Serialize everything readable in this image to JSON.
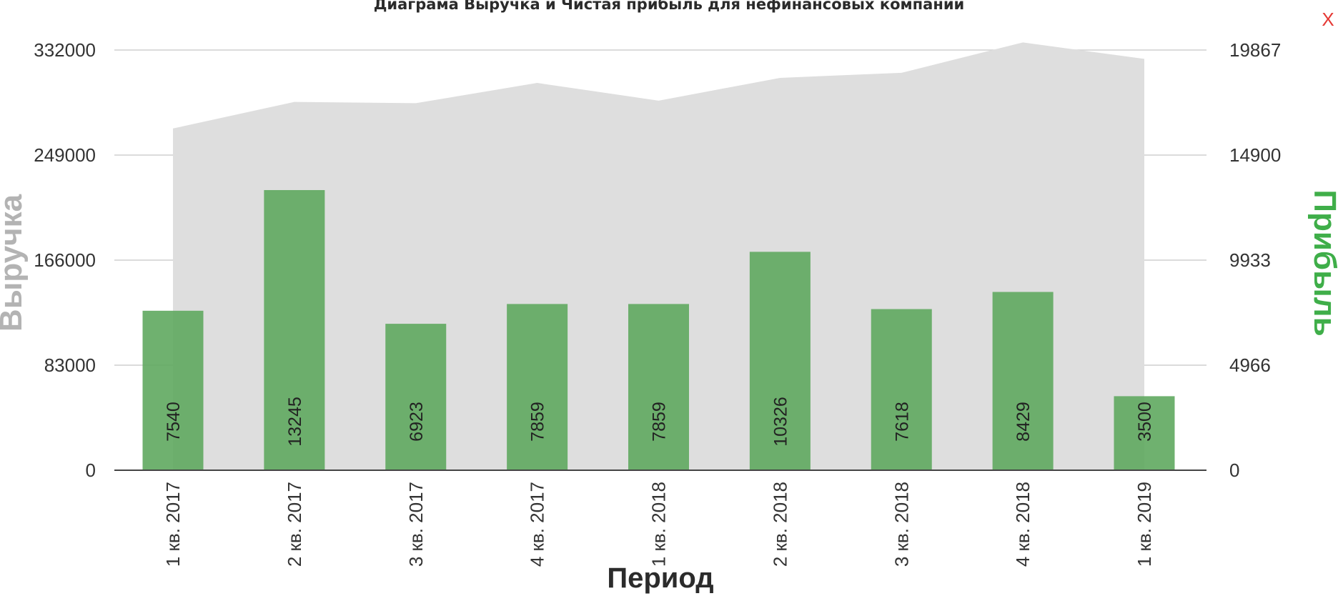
{
  "chart_data": {
    "type": "bar",
    "title": "Диаграма Выручка и Чистая прибыль для нефинансовых компаний",
    "xlabel": "Период",
    "ylabel_left": "Выручка",
    "ylabel_right": "Прибыль",
    "categories": [
      "1 кв. 2017",
      "2 кв. 2017",
      "3 кв. 2017",
      "4 кв. 2017",
      "1 кв. 2018",
      "2 кв. 2018",
      "3 кв. 2018",
      "4 кв. 2018",
      "1 кв. 2019"
    ],
    "left_axis": {
      "ticks": [
        "0",
        "83000",
        "166000",
        "249000",
        "332000"
      ],
      "ylim": [
        0,
        332000
      ]
    },
    "right_axis": {
      "ticks": [
        "0",
        "4966",
        "9933",
        "14900",
        "19867"
      ],
      "ylim": [
        0,
        19867
      ]
    },
    "series": [
      {
        "name": "Выручка",
        "kind": "area",
        "axis": "left",
        "color": "#dedede",
        "values": [
          270000,
          291000,
          290000,
          306000,
          292000,
          310000,
          314000,
          338000,
          325000
        ]
      },
      {
        "name": "Прибыль",
        "kind": "bar",
        "axis": "right",
        "color": "#5fa95f",
        "values": [
          7540,
          13245,
          6923,
          7859,
          7859,
          10326,
          7618,
          8429,
          3500
        ],
        "labels": [
          "7540",
          "13245",
          "6923",
          "7859",
          "7859",
          "10326",
          "7618",
          "8429",
          "3500"
        ]
      }
    ],
    "grid": true
  },
  "ui": {
    "close_label": "X"
  },
  "colors": {
    "revenue_area": "#dedede",
    "profit_bar": "#5fa95f",
    "right_axis_label": "#3fae49",
    "close": "#e53935"
  }
}
